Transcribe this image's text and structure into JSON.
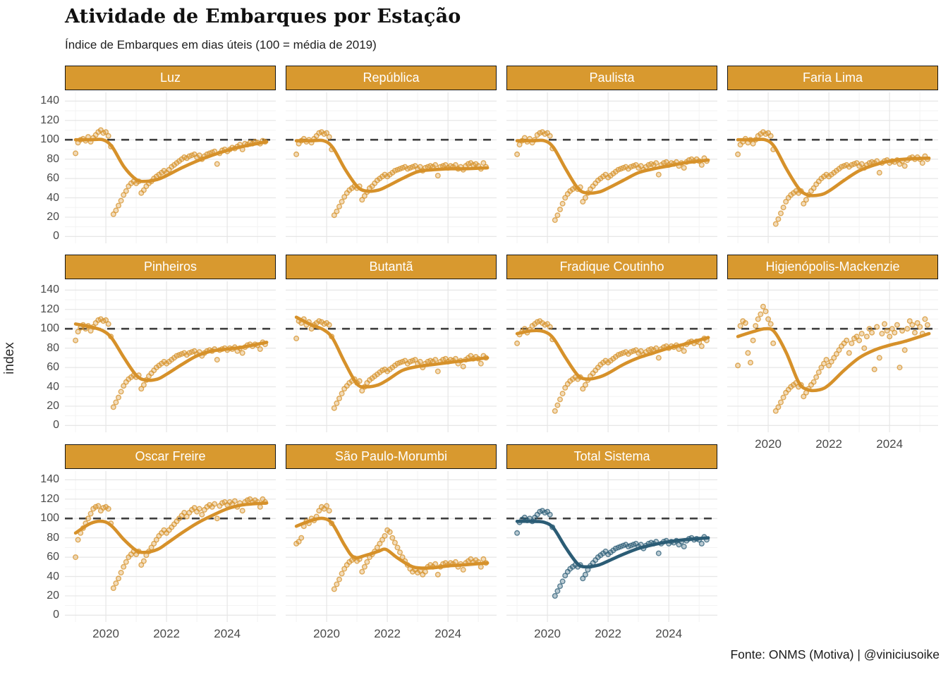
{
  "header": {
    "title": "Atividade de Embarques por Estação",
    "subtitle": "Índice de Embarques em dias úteis (100 = média de 2019)"
  },
  "caption": "Fonte: ONMS (Motiva) | @viniciusoike",
  "axes": {
    "y_title": "index",
    "x_tick_labels": [
      "2020",
      "2022",
      "2024"
    ],
    "y_tick_labels": [
      "0",
      "20",
      "40",
      "60",
      "80",
      "100",
      "120",
      "140"
    ]
  },
  "colors": {
    "station_accent": "#D6912A",
    "total_accent": "#2B5C75",
    "strip_bg": "#D8992F",
    "strip_text": "#FFFFFF",
    "refline": "#3F3F3F",
    "grid_major": "#E6E6E6",
    "grid_minor": "#F3F3F3",
    "axis_text": "#4A4A4A"
  },
  "chart_data": {
    "type": "scatter",
    "note_type": "faceted scatter of monthly index values with loess smooth trend per station",
    "title": "Atividade de Embarques por Estação",
    "subtitle": "Índice de Embarques em dias úteis (100 = média de 2019)",
    "ylabel": "index",
    "xlabel": "",
    "facet_columns": 4,
    "grid": true,
    "refline_y": 100,
    "xlim": [
      2018.65,
      2025.6
    ],
    "ylim": [
      -7,
      149
    ],
    "x_major_ticks": [
      2020,
      2022,
      2024
    ],
    "x_minor_ticks": [
      2019,
      2021,
      2023,
      2025
    ],
    "y_major_ticks": [
      0,
      20,
      40,
      60,
      80,
      100,
      120,
      140
    ],
    "dots_start_year": 2019.0,
    "dots_per_year": 12,
    "trend_x": [
      2019.0,
      2019.5,
      2019.9,
      2020.2,
      2020.6,
      2021.0,
      2021.3,
      2021.7,
      2022.0,
      2022.5,
      2023.0,
      2023.5,
      2024.0,
      2024.5,
      2025.3
    ],
    "panels": [
      {
        "name": "Luz",
        "color_key": "station_accent",
        "has_x_axis": false,
        "trend_y": [
          100,
          100,
          100,
          93,
          72,
          59,
          57,
          59,
          63,
          71,
          78,
          84,
          89,
          93,
          98
        ],
        "dots_monthly": [
          86,
          97,
          100,
          101,
          99,
          103,
          98,
          102,
          105,
          108,
          110,
          107,
          108,
          104,
          93,
          23,
          27,
          32,
          37,
          43,
          47,
          52,
          55,
          57,
          55,
          57,
          45,
          48,
          52,
          55,
          57,
          60,
          62,
          64,
          66,
          68,
          66,
          69,
          72,
          74,
          76,
          78,
          80,
          82,
          81,
          83,
          84,
          85,
          82,
          84,
          80,
          83,
          85,
          86,
          87,
          88,
          75,
          86,
          89,
          90,
          88,
          90,
          92,
          91,
          93,
          95,
          90,
          96,
          95,
          97,
          96,
          98,
          97,
          96,
          99,
          98
        ]
      },
      {
        "name": "República",
        "color_key": "station_accent",
        "has_x_axis": false,
        "trend_y": [
          99,
          99,
          99,
          92,
          70,
          52,
          47,
          48,
          52,
          60,
          67,
          69,
          70,
          70,
          71
        ],
        "dots_monthly": [
          85,
          96,
          99,
          101,
          98,
          100,
          97,
          101,
          104,
          107,
          108,
          106,
          107,
          103,
          90,
          22,
          26,
          31,
          36,
          41,
          45,
          48,
          50,
          52,
          50,
          52,
          38,
          42,
          46,
          50,
          52,
          55,
          58,
          60,
          62,
          64,
          62,
          64,
          66,
          68,
          69,
          70,
          71,
          72,
          70,
          71,
          72,
          73,
          70,
          72,
          68,
          71,
          72,
          73,
          72,
          74,
          63,
          72,
          73,
          74,
          71,
          73,
          72,
          74,
          70,
          72,
          69,
          73,
          75,
          76,
          74,
          75,
          73,
          70,
          76,
          72
        ]
      },
      {
        "name": "Paulista",
        "color_key": "station_accent",
        "has_x_axis": false,
        "trend_y": [
          99,
          99,
          99,
          92,
          70,
          50,
          45,
          46,
          50,
          58,
          66,
          70,
          73,
          76,
          79
        ],
        "dots_monthly": [
          85,
          95,
          99,
          102,
          98,
          101,
          97,
          100,
          105,
          107,
          108,
          106,
          107,
          104,
          91,
          17,
          22,
          28,
          34,
          40,
          44,
          47,
          49,
          51,
          49,
          51,
          36,
          40,
          45,
          49,
          52,
          55,
          58,
          60,
          62,
          64,
          61,
          63,
          65,
          67,
          69,
          70,
          71,
          72,
          70,
          72,
          73,
          74,
          71,
          73,
          69,
          72,
          74,
          75,
          74,
          76,
          64,
          74,
          76,
          77,
          74,
          76,
          75,
          77,
          73,
          76,
          71,
          77,
          79,
          80,
          78,
          80,
          78,
          74,
          81,
          78
        ]
      },
      {
        "name": "Faria Lima",
        "color_key": "station_accent",
        "has_x_axis": false,
        "trend_y": [
          100,
          100,
          100,
          93,
          70,
          50,
          43,
          43,
          47,
          58,
          68,
          74,
          78,
          80,
          81
        ],
        "dots_monthly": [
          85,
          95,
          98,
          101,
          97,
          100,
          96,
          100,
          104,
          106,
          108,
          106,
          107,
          104,
          90,
          13,
          18,
          24,
          30,
          36,
          40,
          43,
          45,
          47,
          45,
          47,
          34,
          38,
          43,
          47,
          50,
          54,
          57,
          60,
          62,
          64,
          62,
          64,
          66,
          68,
          70,
          72,
          73,
          74,
          72,
          74,
          75,
          76,
          73,
          75,
          71,
          74,
          76,
          77,
          76,
          78,
          66,
          76,
          78,
          79,
          76,
          78,
          77,
          79,
          75,
          78,
          73,
          79,
          81,
          82,
          80,
          82,
          80,
          76,
          83,
          80
        ]
      },
      {
        "name": "Pinheiros",
        "color_key": "station_accent",
        "has_x_axis": false,
        "trend_y": [
          105,
          102,
          98,
          90,
          70,
          52,
          47,
          48,
          53,
          63,
          72,
          77,
          79,
          81,
          86
        ],
        "dots_monthly": [
          88,
          97,
          101,
          104,
          100,
          103,
          98,
          102,
          106,
          109,
          110,
          108,
          109,
          105,
          92,
          19,
          24,
          29,
          35,
          41,
          45,
          48,
          50,
          52,
          50,
          52,
          38,
          42,
          47,
          51,
          54,
          57,
          60,
          62,
          64,
          66,
          64,
          66,
          68,
          70,
          72,
          73,
          74,
          75,
          73,
          75,
          76,
          77,
          74,
          76,
          72,
          75,
          77,
          78,
          77,
          79,
          68,
          78,
          79,
          80,
          78,
          80,
          79,
          81,
          77,
          80,
          75,
          81,
          83,
          84,
          82,
          84,
          83,
          79,
          86,
          84
        ]
      },
      {
        "name": "Butantã",
        "color_key": "station_accent",
        "has_x_axis": false,
        "trend_y": [
          112,
          104,
          99,
          90,
          65,
          43,
          40,
          42,
          47,
          57,
          61,
          63,
          65,
          67,
          70
        ],
        "dots_monthly": [
          90,
          108,
          106,
          110,
          104,
          107,
          100,
          104,
          106,
          108,
          107,
          105,
          106,
          104,
          92,
          18,
          23,
          28,
          33,
          38,
          41,
          44,
          46,
          48,
          44,
          46,
          36,
          40,
          44,
          47,
          49,
          51,
          53,
          55,
          57,
          58,
          56,
          58,
          60,
          62,
          64,
          65,
          66,
          67,
          64,
          66,
          67,
          68,
          64,
          66,
          60,
          64,
          66,
          67,
          66,
          68,
          56,
          66,
          68,
          69,
          66,
          68,
          67,
          69,
          64,
          67,
          61,
          68,
          70,
          72,
          69,
          71,
          69,
          64,
          72,
          70
        ]
      },
      {
        "name": "Fradique Coutinho",
        "color_key": "station_accent",
        "has_x_axis": false,
        "trend_y": [
          95,
          98,
          97,
          90,
          70,
          52,
          48,
          50,
          54,
          63,
          70,
          75,
          80,
          84,
          91
        ],
        "dots_monthly": [
          85,
          94,
          97,
          100,
          96,
          99,
          103,
          105,
          107,
          108,
          106,
          104,
          105,
          102,
          89,
          15,
          21,
          27,
          33,
          39,
          43,
          46,
          48,
          50,
          48,
          50,
          38,
          42,
          47,
          51,
          54,
          57,
          60,
          63,
          65,
          67,
          65,
          67,
          69,
          71,
          73,
          74,
          75,
          76,
          74,
          76,
          77,
          78,
          75,
          77,
          73,
          76,
          78,
          79,
          78,
          80,
          70,
          79,
          81,
          82,
          80,
          82,
          81,
          83,
          79,
          82,
          77,
          84,
          86,
          87,
          85,
          87,
          86,
          82,
          90,
          88
        ]
      },
      {
        "name": "Higienópolis-Mackenzie",
        "color_key": "station_accent",
        "has_x_axis": true,
        "trend_y": [
          92,
          97,
          100,
          97,
          75,
          45,
          37,
          37,
          42,
          57,
          70,
          78,
          83,
          87,
          95
        ],
        "dots_monthly": [
          62,
          103,
          108,
          106,
          75,
          65,
          88,
          103,
          110,
          115,
          123,
          118,
          110,
          105,
          85,
          15,
          19,
          24,
          29,
          34,
          37,
          40,
          42,
          44,
          40,
          42,
          30,
          34,
          38,
          42,
          45,
          50,
          55,
          60,
          64,
          68,
          62,
          66,
          70,
          74,
          78,
          82,
          85,
          88,
          75,
          85,
          90,
          92,
          88,
          95,
          80,
          92,
          100,
          96,
          58,
          102,
          70,
          95,
          105,
          98,
          92,
          100,
          96,
          104,
          60,
          98,
          78,
          100,
          108,
          104,
          96,
          106,
          102,
          95,
          110,
          104
        ]
      },
      {
        "name": "Oscar Freire",
        "color_key": "station_accent",
        "has_x_axis": true,
        "trend_y": [
          85,
          95,
          97,
          92,
          78,
          67,
          65,
          68,
          74,
          85,
          95,
          103,
          110,
          114,
          116
        ],
        "dots_monthly": [
          60,
          78,
          85,
          90,
          95,
          100,
          105,
          110,
          112,
          113,
          108,
          111,
          112,
          110,
          95,
          28,
          33,
          38,
          44,
          50,
          55,
          60,
          63,
          66,
          63,
          66,
          52,
          56,
          62,
          66,
          70,
          74,
          78,
          82,
          85,
          88,
          85,
          88,
          91,
          94,
          97,
          100,
          103,
          106,
          102,
          106,
          109,
          111,
          107,
          110,
          104,
          109,
          112,
          114,
          112,
          115,
          100,
          113,
          116,
          117,
          114,
          117,
          115,
          118,
          112,
          116,
          108,
          117,
          119,
          120,
          117,
          119,
          117,
          112,
          120,
          117
        ]
      },
      {
        "name": "São Paulo-Morumbi",
        "color_key": "station_accent",
        "has_x_axis": true,
        "trend_x_override": [
          2019.0,
          2019.5,
          2019.9,
          2020.2,
          2020.6,
          2020.9,
          2021.3,
          2021.7,
          2021.95,
          2022.3,
          2022.7,
          2023.0,
          2023.5,
          2024.0,
          2024.5,
          2025.3
        ],
        "trend_y": [
          92,
          98,
          100,
          94,
          72,
          60,
          62,
          66,
          68,
          60,
          52,
          49,
          49,
          51,
          52,
          54
        ],
        "dots_monthly": [
          74,
          76,
          80,
          92,
          97,
          95,
          100,
          98,
          102,
          108,
          112,
          110,
          113,
          108,
          95,
          27,
          32,
          37,
          43,
          48,
          52,
          55,
          57,
          59,
          56,
          58,
          45,
          50,
          55,
          60,
          63,
          66,
          70,
          74,
          78,
          82,
          88,
          86,
          80,
          75,
          70,
          65,
          60,
          56,
          52,
          48,
          45,
          47,
          44,
          46,
          42,
          45,
          50,
          52,
          50,
          53,
          42,
          50,
          53,
          54,
          52,
          54,
          53,
          55,
          50,
          53,
          47,
          54,
          56,
          58,
          55,
          57,
          55,
          50,
          58,
          54
        ]
      },
      {
        "name": "Total Sistema",
        "color_key": "total_accent",
        "has_x_axis": true,
        "trend_y": [
          97,
          97,
          96,
          90,
          70,
          53,
          50,
          52,
          56,
          63,
          69,
          73,
          76,
          78,
          80
        ],
        "dots_monthly": [
          85,
          96,
          99,
          101,
          98,
          100,
          97,
          101,
          104,
          107,
          108,
          106,
          107,
          104,
          91,
          20,
          25,
          30,
          35,
          41,
          45,
          48,
          50,
          52,
          50,
          52,
          38,
          42,
          47,
          51,
          54,
          57,
          60,
          62,
          64,
          66,
          63,
          65,
          67,
          69,
          70,
          71,
          72,
          73,
          71,
          72,
          73,
          74,
          71,
          73,
          69,
          72,
          74,
          75,
          74,
          76,
          64,
          74,
          76,
          77,
          74,
          76,
          75,
          77,
          73,
          76,
          71,
          77,
          79,
          80,
          78,
          79,
          78,
          74,
          81,
          78
        ]
      }
    ]
  }
}
